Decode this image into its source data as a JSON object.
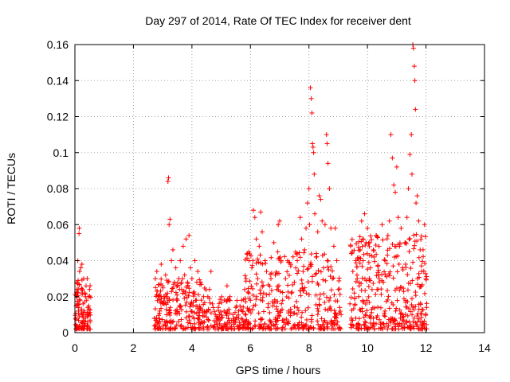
{
  "chart_data": {
    "type": "scatter",
    "title": "Day 297 of 2014, Rate Of TEC Index for receiver dent",
    "xlabel": "GPS time / hours",
    "ylabel": "ROTI / TECUs",
    "xlim": [
      0,
      14
    ],
    "ylim": [
      0,
      0.16
    ],
    "xticks": [
      0,
      2,
      4,
      6,
      8,
      10,
      12,
      14
    ],
    "yticks": [
      0,
      0.02,
      0.04,
      0.06,
      0.08,
      0.1,
      0.12,
      0.14,
      0.16
    ],
    "xtick_labels": [
      "0",
      "2",
      "4",
      "6",
      "8",
      "10",
      "12",
      "14"
    ],
    "ytick_labels": [
      "0",
      "0.02",
      "0.04",
      "0.06",
      "0.08",
      "0.1",
      "0.12",
      "0.14",
      "0.16"
    ],
    "grid": true,
    "marker": "+",
    "color": "#ff0000",
    "series": [
      {
        "name": "ROTI",
        "points": [
          [
            0.02,
            0.008
          ],
          [
            0.04,
            0.015
          ],
          [
            0.06,
            0.028
          ],
          [
            0.08,
            0.022
          ],
          [
            0.1,
            0.04
          ],
          [
            0.12,
            0.012
          ],
          [
            0.14,
            0.055
          ],
          [
            0.15,
            0.058
          ],
          [
            0.16,
            0.034
          ],
          [
            0.18,
            0.018
          ],
          [
            0.2,
            0.036
          ],
          [
            0.22,
            0.01
          ],
          [
            0.24,
            0.038
          ],
          [
            0.26,
            0.024
          ],
          [
            0.28,
            0.016
          ],
          [
            0.3,
            0.03
          ],
          [
            0.32,
            0.012
          ],
          [
            0.34,
            0.022
          ],
          [
            0.36,
            0.008
          ],
          [
            0.38,
            0.026
          ],
          [
            0.4,
            0.018
          ],
          [
            0.42,
            0.03
          ],
          [
            0.44,
            0.014
          ],
          [
            0.46,
            0.02
          ],
          [
            0.48,
            0.01
          ],
          [
            0.5,
            0.024
          ],
          [
            0.52,
            0.006
          ],
          [
            0.05,
            0.004
          ],
          [
            0.25,
            0.006
          ],
          [
            0.45,
            0.004
          ],
          [
            2.72,
            0.008
          ],
          [
            2.75,
            0.03
          ],
          [
            2.8,
            0.034
          ],
          [
            2.85,
            0.02
          ],
          [
            2.9,
            0.012
          ],
          [
            2.95,
            0.038
          ],
          [
            3.0,
            0.026
          ],
          [
            3.05,
            0.016
          ],
          [
            3.1,
            0.032
          ],
          [
            3.15,
            0.02
          ],
          [
            3.18,
            0.084
          ],
          [
            3.2,
            0.086
          ],
          [
            3.22,
            0.06
          ],
          [
            3.25,
            0.063
          ],
          [
            3.3,
            0.04
          ],
          [
            3.35,
            0.046
          ],
          [
            3.4,
            0.028
          ],
          [
            3.45,
            0.036
          ],
          [
            3.5,
            0.018
          ],
          [
            3.55,
            0.03
          ],
          [
            3.6,
            0.04
          ],
          [
            3.65,
            0.024
          ],
          [
            3.7,
            0.048
          ],
          [
            3.75,
            0.032
          ],
          [
            3.8,
            0.052
          ],
          [
            3.85,
            0.028
          ],
          [
            3.9,
            0.054
          ],
          [
            3.95,
            0.036
          ],
          [
            4.0,
            0.03
          ],
          [
            4.05,
            0.022
          ],
          [
            4.1,
            0.04
          ],
          [
            4.15,
            0.018
          ],
          [
            4.2,
            0.034
          ],
          [
            4.25,
            0.012
          ],
          [
            4.3,
            0.028
          ],
          [
            4.4,
            0.02
          ],
          [
            4.5,
            0.012
          ],
          [
            4.6,
            0.024
          ],
          [
            4.65,
            0.034
          ],
          [
            4.7,
            0.016
          ],
          [
            4.8,
            0.01
          ],
          [
            4.9,
            0.014
          ],
          [
            5.0,
            0.008
          ],
          [
            5.1,
            0.012
          ],
          [
            5.2,
            0.026
          ],
          [
            5.3,
            0.02
          ],
          [
            5.4,
            0.01
          ],
          [
            5.5,
            0.014
          ],
          [
            5.6,
            0.008
          ],
          [
            5.7,
            0.018
          ],
          [
            5.8,
            0.024
          ],
          [
            5.85,
            0.03
          ],
          [
            5.9,
            0.044
          ],
          [
            5.95,
            0.04
          ],
          [
            6.0,
            0.018
          ],
          [
            6.05,
            0.036
          ],
          [
            6.1,
            0.068
          ],
          [
            6.15,
            0.064
          ],
          [
            6.2,
            0.052
          ],
          [
            6.25,
            0.03
          ],
          [
            6.3,
            0.048
          ],
          [
            6.35,
            0.067
          ],
          [
            6.4,
            0.056
          ],
          [
            6.45,
            0.022
          ],
          [
            6.5,
            0.04
          ],
          [
            6.55,
            0.034
          ],
          [
            6.6,
            0.014
          ],
          [
            6.7,
            0.03
          ],
          [
            6.8,
            0.05
          ],
          [
            6.9,
            0.024
          ],
          [
            6.95,
            0.06
          ],
          [
            7.0,
            0.062
          ],
          [
            7.05,
            0.04
          ],
          [
            7.1,
            0.018
          ],
          [
            7.2,
            0.03
          ],
          [
            7.3,
            0.012
          ],
          [
            7.4,
            0.022
          ],
          [
            7.5,
            0.028
          ],
          [
            7.6,
            0.04
          ],
          [
            7.7,
            0.064
          ],
          [
            7.75,
            0.052
          ],
          [
            7.8,
            0.034
          ],
          [
            7.85,
            0.046
          ],
          [
            7.9,
            0.058
          ],
          [
            7.95,
            0.072
          ],
          [
            8.0,
            0.08
          ],
          [
            8.02,
            0.06
          ],
          [
            8.05,
            0.136
          ],
          [
            8.08,
            0.13
          ],
          [
            8.1,
            0.122
          ],
          [
            8.12,
            0.105
          ],
          [
            8.14,
            0.103
          ],
          [
            8.16,
            0.1
          ],
          [
            8.18,
            0.088
          ],
          [
            8.2,
            0.066
          ],
          [
            8.25,
            0.044
          ],
          [
            8.3,
            0.056
          ],
          [
            8.35,
            0.076
          ],
          [
            8.4,
            0.074
          ],
          [
            8.45,
            0.062
          ],
          [
            8.5,
            0.036
          ],
          [
            8.55,
            0.06
          ],
          [
            8.6,
            0.11
          ],
          [
            8.62,
            0.105
          ],
          [
            8.65,
            0.094
          ],
          [
            8.7,
            0.08
          ],
          [
            8.75,
            0.058
          ],
          [
            8.8,
            0.03
          ],
          [
            8.85,
            0.048
          ],
          [
            8.9,
            0.058
          ],
          [
            8.95,
            0.04
          ],
          [
            9.0,
            0.024
          ],
          [
            9.05,
            0.014
          ],
          [
            9.1,
            0.01
          ],
          [
            9.4,
            0.016
          ],
          [
            9.45,
            0.044
          ],
          [
            9.5,
            0.034
          ],
          [
            9.55,
            0.022
          ],
          [
            9.6,
            0.04
          ],
          [
            9.65,
            0.03
          ],
          [
            9.7,
            0.02
          ],
          [
            9.75,
            0.046
          ],
          [
            9.8,
            0.062
          ],
          [
            9.85,
            0.04
          ],
          [
            9.9,
            0.066
          ],
          [
            9.95,
            0.05
          ],
          [
            10.0,
            0.058
          ],
          [
            10.1,
            0.036
          ],
          [
            10.2,
            0.046
          ],
          [
            10.3,
            0.054
          ],
          [
            10.4,
            0.03
          ],
          [
            10.5,
            0.06
          ],
          [
            10.6,
            0.04
          ],
          [
            10.7,
            0.054
          ],
          [
            10.75,
            0.062
          ],
          [
            10.8,
            0.11
          ],
          [
            10.85,
            0.097
          ],
          [
            10.9,
            0.082
          ],
          [
            10.95,
            0.078
          ],
          [
            11.0,
            0.092
          ],
          [
            11.05,
            0.064
          ],
          [
            11.1,
            0.048
          ],
          [
            11.15,
            0.058
          ],
          [
            11.2,
            0.036
          ],
          [
            11.3,
            0.05
          ],
          [
            11.35,
            0.064
          ],
          [
            11.4,
            0.08
          ],
          [
            11.45,
            0.099
          ],
          [
            11.5,
            0.11
          ],
          [
            11.52,
            0.088
          ],
          [
            11.55,
            0.16
          ],
          [
            11.57,
            0.158
          ],
          [
            11.6,
            0.148
          ],
          [
            11.62,
            0.14
          ],
          [
            11.64,
            0.124
          ],
          [
            11.66,
            0.072
          ],
          [
            11.7,
            0.076
          ],
          [
            11.75,
            0.062
          ],
          [
            11.8,
            0.046
          ],
          [
            11.85,
            0.034
          ],
          [
            11.9,
            0.046
          ],
          [
            11.95,
            0.06
          ],
          [
            12.0,
            0.03
          ],
          [
            12.02,
            0.014
          ],
          [
            10.2,
            0.008
          ],
          [
            10.6,
            0.012
          ],
          [
            11.2,
            0.01
          ],
          [
            11.8,
            0.006
          ],
          [
            9.6,
            0.008
          ],
          [
            9.9,
            0.004
          ]
        ]
      }
    ],
    "density_bands": [
      {
        "x_range": [
          0.0,
          0.55
        ],
        "y_range": [
          0.002,
          0.03
        ],
        "count": 90
      },
      {
        "x_range": [
          2.7,
          4.5
        ],
        "y_range": [
          0.002,
          0.03
        ],
        "count": 230
      },
      {
        "x_range": [
          4.5,
          5.8
        ],
        "y_range": [
          0.002,
          0.02
        ],
        "count": 120
      },
      {
        "x_range": [
          5.8,
          9.1
        ],
        "y_range": [
          0.002,
          0.045
        ],
        "count": 360
      },
      {
        "x_range": [
          9.4,
          12.05
        ],
        "y_range": [
          0.002,
          0.055
        ],
        "count": 360
      }
    ]
  }
}
